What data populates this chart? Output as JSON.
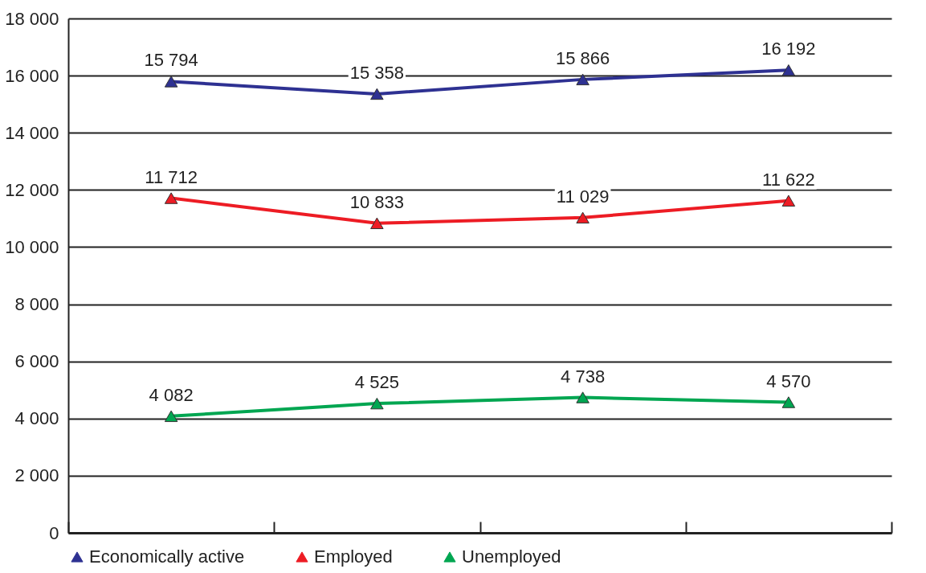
{
  "chart_data": {
    "type": "line",
    "categories": [
      null,
      null,
      null,
      null
    ],
    "series": [
      {
        "name": "Economically active",
        "color": "#2e3192",
        "values": [
          15794,
          15358,
          15866,
          16192
        ],
        "value_labels": [
          "15 794",
          "15 358",
          "15 866",
          "16 192"
        ]
      },
      {
        "name": "Employed",
        "color": "#ed1c24",
        "values": [
          11712,
          10833,
          11029,
          11622
        ],
        "value_labels": [
          "11 712",
          "10 833",
          "11 029",
          "11 622"
        ]
      },
      {
        "name": "Unemployed",
        "color": "#00a651",
        "values": [
          4082,
          4525,
          4738,
          4570
        ],
        "value_labels": [
          "4 082",
          "4 525",
          "4 738",
          "4 570"
        ]
      }
    ],
    "ylim": [
      0,
      18000
    ],
    "yticks": [
      {
        "value": 0,
        "label": "0"
      },
      {
        "value": 2000,
        "label": "2 000"
      },
      {
        "value": 4000,
        "label": "4 000"
      },
      {
        "value": 6000,
        "label": "6 000"
      },
      {
        "value": 8000,
        "label": "8 000"
      },
      {
        "value": 10000,
        "label": "10 000"
      },
      {
        "value": 12000,
        "label": "12 000"
      },
      {
        "value": 14000,
        "label": "14 000"
      },
      {
        "value": 16000,
        "label": "16 000"
      },
      {
        "value": 18000,
        "label": "18 000"
      }
    ],
    "grid": "y",
    "legend": "bottom",
    "marker": "triangle",
    "line_style": "solid"
  }
}
